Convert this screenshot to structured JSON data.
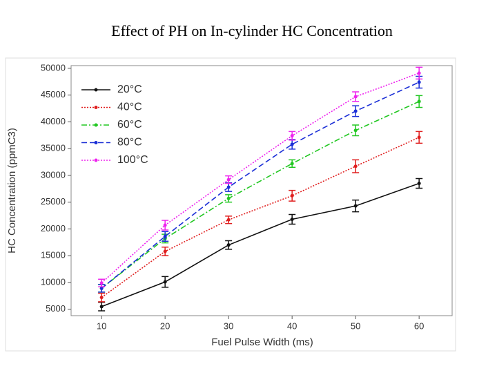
{
  "title": "Effect of PH on In-cylinder HC Concentration",
  "chart_data": {
    "type": "line",
    "x_label": "Fuel Pulse Width (ms)",
    "y_label": "HC Concentration (ppmC3)",
    "x": [
      10,
      20,
      30,
      40,
      50,
      60
    ],
    "xlim": [
      5.2,
      65.2
    ],
    "xticks": [
      10,
      20,
      30,
      40,
      50,
      60
    ],
    "ylim": [
      3800,
      50500
    ],
    "yticks": [
      5000,
      10000,
      15000,
      20000,
      25000,
      30000,
      35000,
      40000,
      45000,
      50000
    ],
    "legend": "upper left",
    "series": [
      {
        "name": "20°C",
        "color": "#111111",
        "linestyle": "solid",
        "values": [
          5500,
          10100,
          17000,
          21800,
          24300,
          28500
        ],
        "errors": [
          800,
          1000,
          800,
          900,
          1100,
          900
        ]
      },
      {
        "name": "40°C",
        "color": "#e01e1e",
        "linestyle": "dotted",
        "values": [
          7200,
          15800,
          21700,
          26200,
          31700,
          37100
        ],
        "errors": [
          800,
          800,
          700,
          1000,
          1200,
          1100
        ]
      },
      {
        "name": "60°C",
        "color": "#22c722",
        "linestyle": "dashdot",
        "values": [
          8900,
          18200,
          25700,
          32200,
          38400,
          43800
        ],
        "errors": [
          700,
          800,
          700,
          700,
          1000,
          1100
        ]
      },
      {
        "name": "80°C",
        "color": "#1a2ed6",
        "linestyle": "dashed",
        "values": [
          8900,
          18600,
          27800,
          35800,
          42000,
          47400
        ],
        "errors": [
          700,
          900,
          800,
          900,
          1000,
          1100
        ]
      },
      {
        "name": "100°C",
        "color": "#ee22ee",
        "linestyle": "dotted",
        "values": [
          9900,
          20700,
          29200,
          37400,
          44700,
          49100
        ],
        "errors": [
          700,
          900,
          700,
          800,
          900,
          1100
        ]
      }
    ]
  }
}
